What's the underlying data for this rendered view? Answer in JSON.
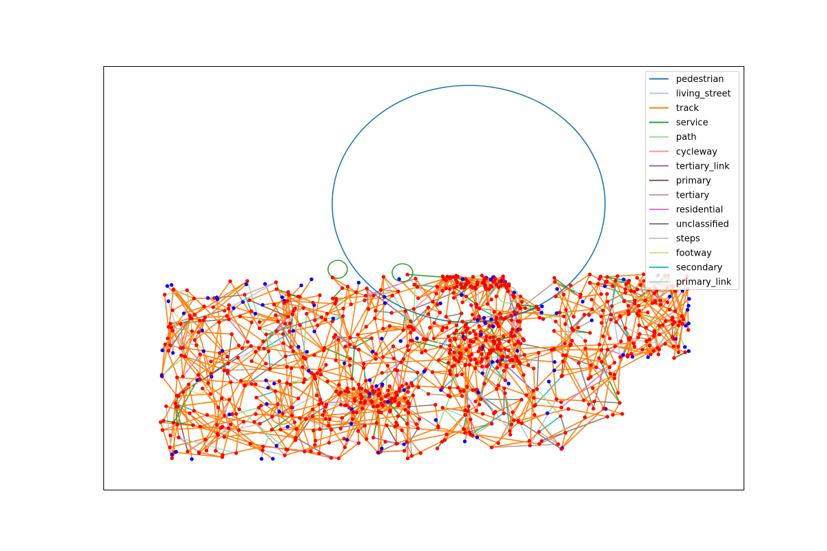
{
  "chart_data": {
    "type": "network",
    "title": "",
    "xlabel": "",
    "ylabel": "",
    "axes_visible": false,
    "grid": false,
    "legend_position": "top-right",
    "series": [
      {
        "name": "pedestrian",
        "color": "#1f77b4"
      },
      {
        "name": "living_street",
        "color": "#aec7e8"
      },
      {
        "name": "track",
        "color": "#ff7f0e"
      },
      {
        "name": "service",
        "color": "#2ca02c"
      },
      {
        "name": "path",
        "color": "#98df8a"
      },
      {
        "name": "cycleway",
        "color": "#ff9896"
      },
      {
        "name": "tertiary_link",
        "color": "#9467bd"
      },
      {
        "name": "primary",
        "color": "#8c564b"
      },
      {
        "name": "tertiary",
        "color": "#c49c94"
      },
      {
        "name": "residential",
        "color": "#e377c2"
      },
      {
        "name": "unclassified",
        "color": "#7f7f7f"
      },
      {
        "name": "steps",
        "color": "#c7c7c7"
      },
      {
        "name": "footway",
        "color": "#dbdb8d"
      },
      {
        "name": "secondary",
        "color": "#17becf"
      },
      {
        "name": "primary_link",
        "color": "#9edae5"
      }
    ],
    "node_colors": {
      "endpoint": "#0000ff",
      "intersection": "#ff0000"
    }
  }
}
